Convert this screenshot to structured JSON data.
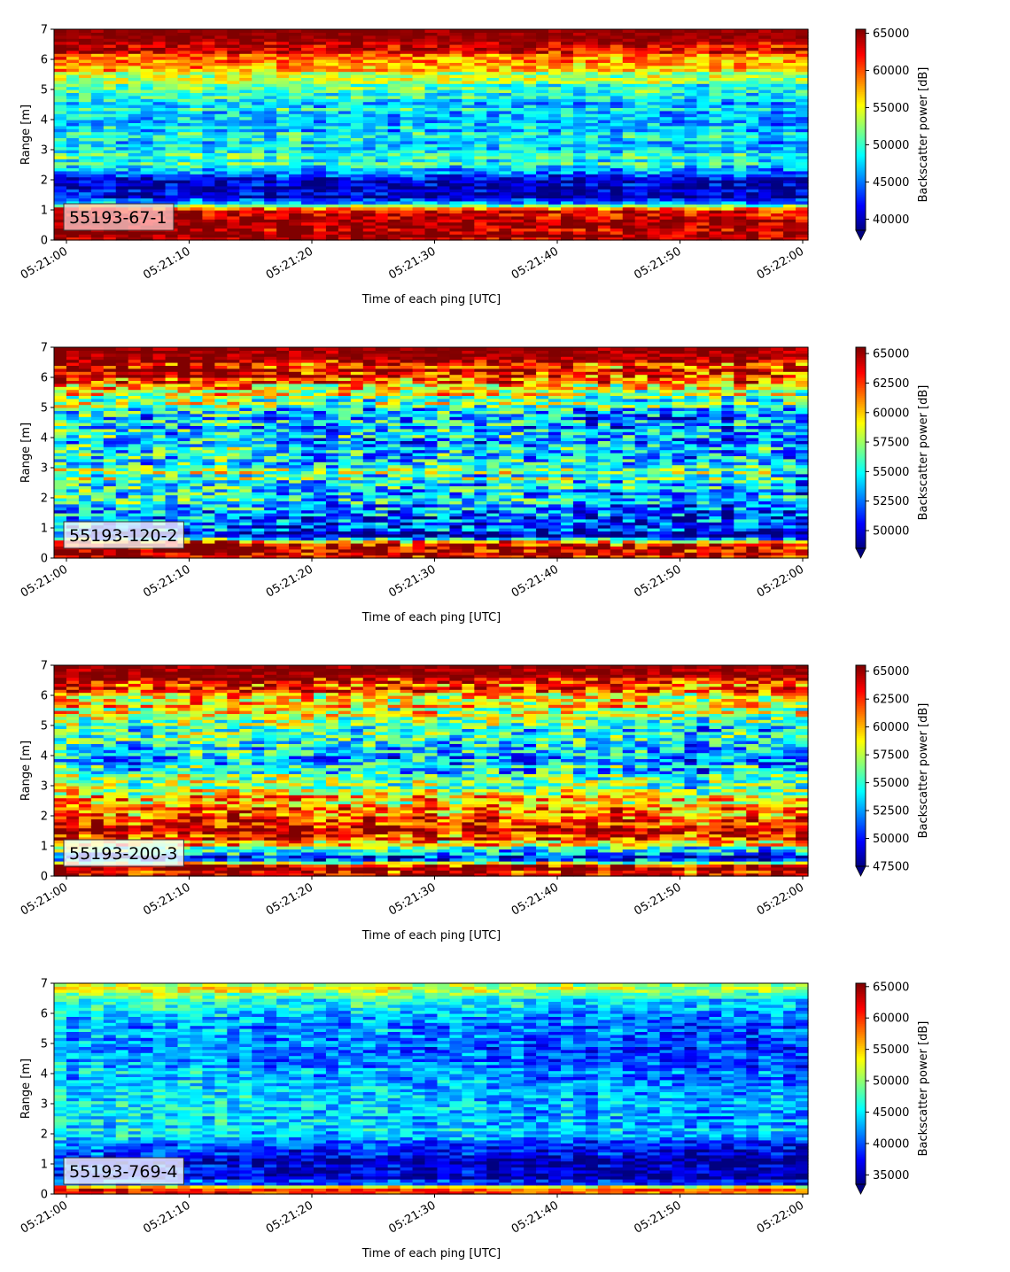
{
  "chart_data": [
    {
      "type": "heatmap",
      "label": "55193-67-1",
      "xlabel": "Time of each ping [UTC]",
      "ylabel": "Range [m]",
      "ylim": [
        0,
        7
      ],
      "yticks": [
        "0",
        "1",
        "2",
        "3",
        "4",
        "5",
        "6",
        "7"
      ],
      "xticks": [
        "05:21:00",
        "05:21:10",
        "05:21:20",
        "05:21:30",
        "05:21:40",
        "05:21:50",
        "05:22:00"
      ],
      "colorbar": {
        "label": "Backscatter power [dB]",
        "range": [
          38500,
          65535
        ],
        "ticks": [
          "40000",
          "45000",
          "50000",
          "55000",
          "60000",
          "65000"
        ],
        "tick_values": [
          40000,
          45000,
          50000,
          55000,
          60000,
          65000
        ],
        "extend": "min",
        "colormap": "jet"
      },
      "range_profile_m": [
        0,
        0.3,
        1.0,
        1.15,
        1.4,
        2.0,
        2.5,
        3.0,
        4.0,
        5.0,
        5.5,
        6.0,
        6.5,
        7.0
      ],
      "backscatter_profile": [
        65000,
        65000,
        64000,
        52000,
        42000,
        41000,
        51000,
        49000,
        48000,
        50000,
        55000,
        60000,
        64000,
        65500
      ]
    },
    {
      "type": "heatmap",
      "label": "55193-120-2",
      "xlabel": "Time of each ping [UTC]",
      "ylabel": "Range [m]",
      "ylim": [
        0,
        7
      ],
      "yticks": [
        "0",
        "1",
        "2",
        "3",
        "4",
        "5",
        "6",
        "7"
      ],
      "xticks": [
        "05:21:00",
        "05:21:10",
        "05:21:20",
        "05:21:30",
        "05:21:40",
        "05:21:50",
        "05:22:00"
      ],
      "colorbar": {
        "label": "Backscatter power [dB]",
        "range": [
          48500,
          65535
        ],
        "ticks": [
          "50000",
          "52500",
          "55000",
          "57500",
          "60000",
          "62500",
          "65000"
        ],
        "tick_values": [
          50000,
          52500,
          55000,
          57500,
          60000,
          62500,
          65000
        ],
        "extend": "min",
        "colormap": "jet"
      },
      "range_profile_m": [
        0,
        0.15,
        0.5,
        0.7,
        1.2,
        2.0,
        2.9,
        3.5,
        4.5,
        5.2,
        5.8,
        6.3,
        7.0
      ],
      "backscatter_profile": [
        64000,
        65500,
        65000,
        51000,
        52000,
        55500,
        57000,
        55000,
        54000,
        57000,
        62000,
        64500,
        65500
      ]
    },
    {
      "type": "heatmap",
      "label": "55193-200-3",
      "xlabel": "Time of each ping [UTC]",
      "ylabel": "Range [m]",
      "ylim": [
        0,
        7
      ],
      "yticks": [
        "0",
        "1",
        "2",
        "3",
        "4",
        "5",
        "6",
        "7"
      ],
      "xticks": [
        "05:21:00",
        "05:21:10",
        "05:21:20",
        "05:21:30",
        "05:21:40",
        "05:21:50",
        "05:22:00"
      ],
      "colorbar": {
        "label": "Backscatter power [dB]",
        "range": [
          47500,
          65535
        ],
        "ticks": [
          "47500",
          "50000",
          "52500",
          "55000",
          "57500",
          "60000",
          "62500",
          "65000"
        ],
        "tick_values": [
          47500,
          50000,
          52500,
          55000,
          57500,
          60000,
          62500,
          65000
        ],
        "extend": "min",
        "colormap": "jet"
      },
      "range_profile_m": [
        0,
        0.3,
        0.6,
        0.8,
        1.2,
        1.6,
        2.0,
        2.5,
        3.0,
        4.0,
        5.0,
        6.0,
        6.5,
        7.0
      ],
      "backscatter_profile": [
        64000,
        65500,
        50000,
        53000,
        63000,
        65000,
        62000,
        61000,
        57000,
        54000,
        56000,
        61000,
        64000,
        65500
      ]
    },
    {
      "type": "heatmap",
      "label": "55193-769-4",
      "xlabel": "Time of each ping [UTC]",
      "ylabel": "Range [m]",
      "ylim": [
        0,
        7
      ],
      "yticks": [
        "0",
        "1",
        "2",
        "3",
        "4",
        "5",
        "6",
        "7"
      ],
      "xticks": [
        "05:21:00",
        "05:21:10",
        "05:21:20",
        "05:21:30",
        "05:21:40",
        "05:21:50",
        "05:22:00"
      ],
      "colorbar": {
        "label": "Backscatter power [dB]",
        "range": [
          33500,
          65535
        ],
        "ticks": [
          "35000",
          "40000",
          "45000",
          "50000",
          "55000",
          "60000",
          "65000"
        ],
        "tick_values": [
          35000,
          40000,
          45000,
          50000,
          55000,
          60000,
          65000
        ],
        "extend": "min",
        "colormap": "jet"
      },
      "range_profile_m": [
        0,
        0.2,
        0.35,
        0.5,
        1.0,
        1.5,
        2.0,
        3.0,
        4.0,
        5.0,
        6.0,
        6.5,
        6.8,
        7.0
      ],
      "backscatter_profile": [
        62000,
        64000,
        42000,
        39000,
        38000,
        40000,
        46000,
        45500,
        44000,
        43000,
        44000,
        49000,
        55000,
        50000
      ]
    }
  ]
}
